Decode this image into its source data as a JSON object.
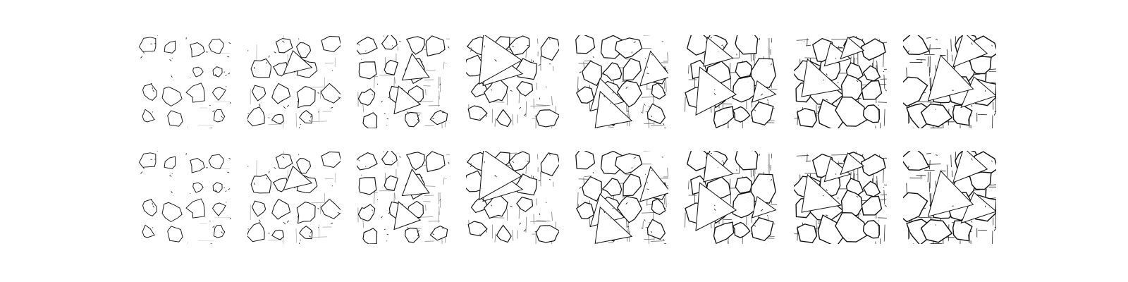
{
  "figure": {
    "rows": 2,
    "columns": 8,
    "background": "#ffffff",
    "ink": "#111111",
    "panels": [
      {
        "row": 1,
        "col": 1,
        "density": 0.05,
        "wedges": 0
      },
      {
        "row": 1,
        "col": 2,
        "density": 0.2,
        "wedges": 1
      },
      {
        "row": 1,
        "col": 3,
        "density": 0.35,
        "wedges": 2
      },
      {
        "row": 1,
        "col": 4,
        "density": 0.45,
        "wedges": 2
      },
      {
        "row": 1,
        "col": 5,
        "density": 0.55,
        "wedges": 3
      },
      {
        "row": 1,
        "col": 6,
        "density": 0.7,
        "wedges": 3
      },
      {
        "row": 1,
        "col": 7,
        "density": 0.8,
        "wedges": 3
      },
      {
        "row": 1,
        "col": 8,
        "density": 0.9,
        "wedges": 3
      },
      {
        "row": 2,
        "col": 1,
        "density": 0.05,
        "wedges": 0
      },
      {
        "row": 2,
        "col": 2,
        "density": 0.2,
        "wedges": 1
      },
      {
        "row": 2,
        "col": 3,
        "density": 0.35,
        "wedges": 2
      },
      {
        "row": 2,
        "col": 4,
        "density": 0.45,
        "wedges": 2
      },
      {
        "row": 2,
        "col": 5,
        "density": 0.55,
        "wedges": 3
      },
      {
        "row": 2,
        "col": 6,
        "density": 0.7,
        "wedges": 3
      },
      {
        "row": 2,
        "col": 7,
        "density": 0.8,
        "wedges": 3
      },
      {
        "row": 2,
        "col": 8,
        "density": 0.9,
        "wedges": 3
      }
    ]
  }
}
